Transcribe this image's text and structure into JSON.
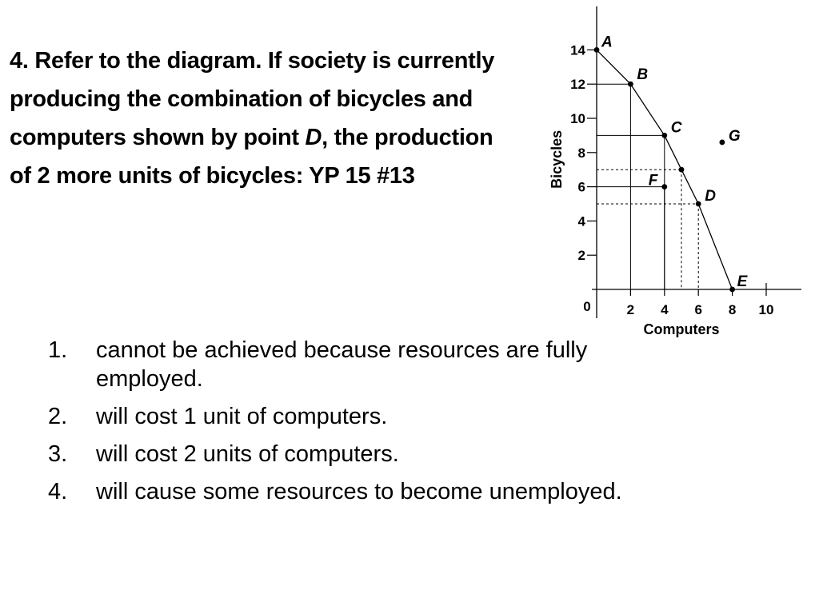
{
  "question": {
    "text_before": "4. Refer to the diagram. If society is currently producing the combination of bicycles and computers shown by point ",
    "point": "D",
    "text_after": ", the production of 2 more units of bicycles: YP 15 #13"
  },
  "answers": [
    {
      "number": "1.",
      "text": "cannot be achieved because resources are fully employed."
    },
    {
      "number": "2.",
      "text": "will cost 1 unit of computers."
    },
    {
      "number": "3.",
      "text": "will cost 2 units of computers."
    },
    {
      "number": "4.",
      "text": "will cause some resources to become unemployed."
    }
  ],
  "chart_data": {
    "type": "line",
    "xlabel": "Computers",
    "ylabel": "Bicycles",
    "xlim": [
      0,
      11
    ],
    "ylim": [
      0,
      16
    ],
    "xticks": [
      2,
      4,
      6,
      8,
      10
    ],
    "yticks": [
      2,
      4,
      6,
      8,
      10,
      12,
      14
    ],
    "origin_label": "0",
    "grid": false,
    "series": [
      {
        "x": [
          0,
          2,
          4,
          5,
          6,
          8
        ],
        "y": [
          14,
          12,
          9,
          7,
          5,
          0
        ]
      }
    ],
    "points": [
      {
        "label": "A",
        "x": 0,
        "y": 14
      },
      {
        "label": "B",
        "x": 2,
        "y": 12
      },
      {
        "label": "C",
        "x": 4,
        "y": 9
      },
      {
        "label": "",
        "x": 5,
        "y": 7
      },
      {
        "label": "D",
        "x": 6,
        "y": 5
      },
      {
        "label": "E",
        "x": 8,
        "y": 0
      },
      {
        "label": "F",
        "x": 4,
        "y": 6
      },
      {
        "label": "G",
        "x": 7.4,
        "y": 8.6
      }
    ],
    "reference_lines": [
      {
        "x": 2,
        "y": 12,
        "style": "solid"
      },
      {
        "x": 4,
        "y": 9,
        "style": "solid"
      },
      {
        "x": 4,
        "y": 6,
        "style": "solid"
      },
      {
        "x": 5,
        "y": 7,
        "style": "dotted"
      },
      {
        "x": 6,
        "y": 5,
        "style": "dotted"
      }
    ]
  }
}
